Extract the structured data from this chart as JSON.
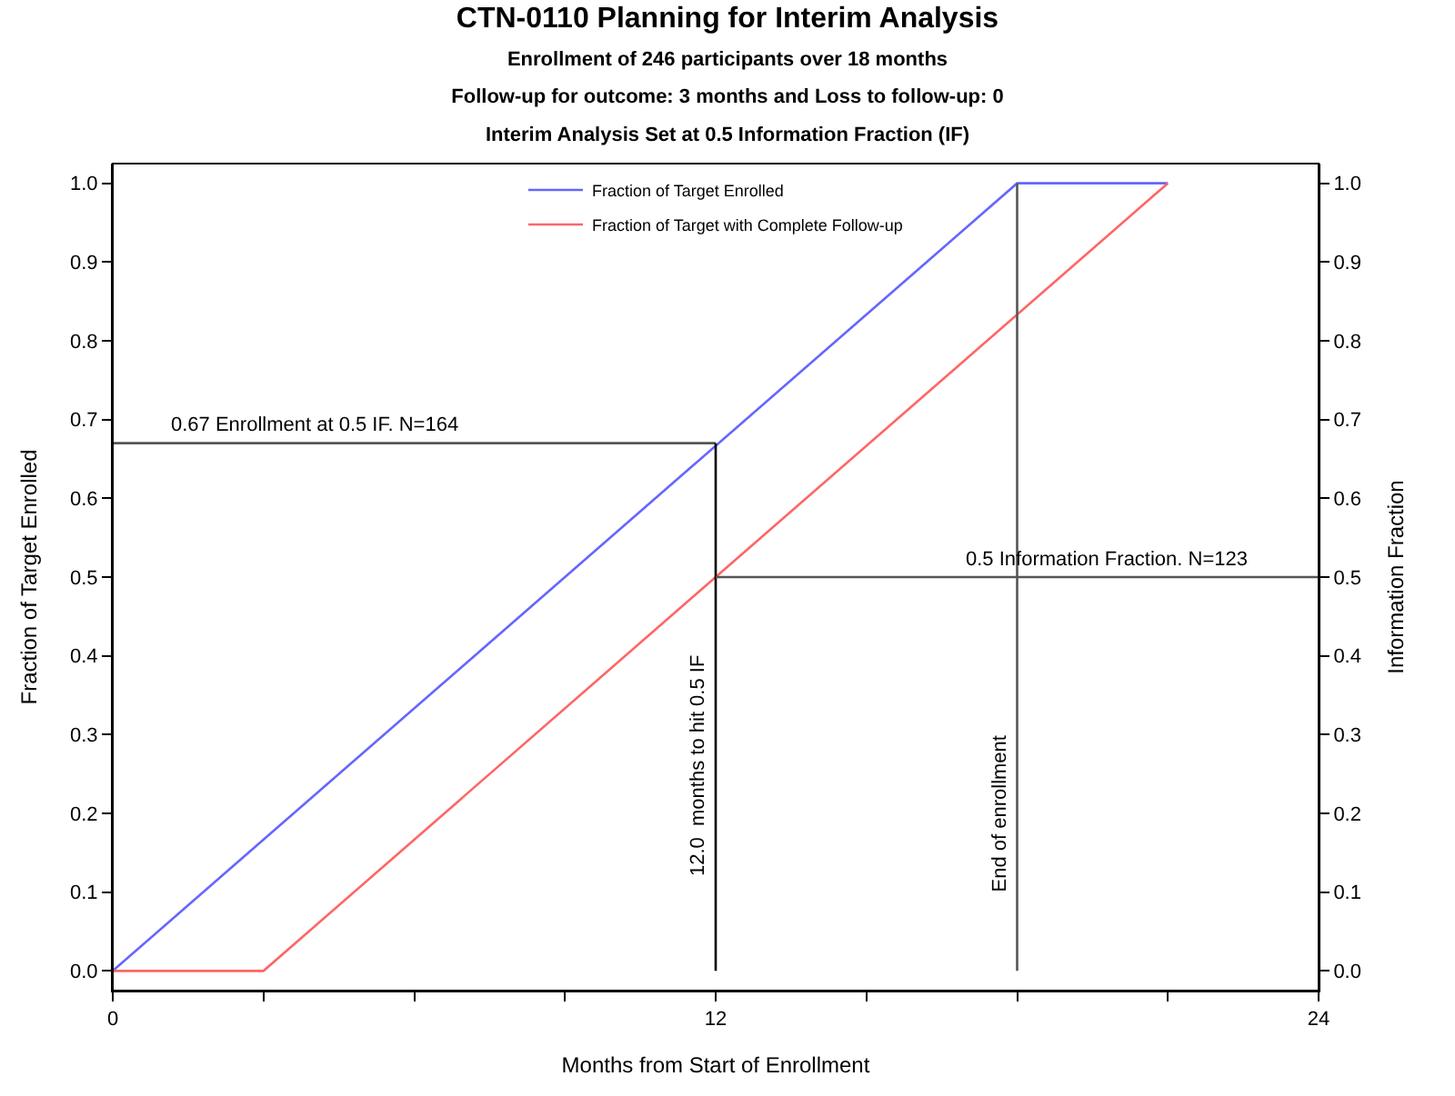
{
  "chart_data": {
    "type": "line",
    "title": "CTN-0110 Planning for Interim Analysis",
    "subtitle": "Enrollment of 246 participants over 18 months\nFollow-up for outcome: 3 months and Loss to follow-up: 0\nInterim Analysis Set at 0.5 Information Fraction (IF)",
    "xlabel": "Months from Start of Enrollment",
    "ylabel": "Fraction of Target Enrolled",
    "y2label": "Information Fraction",
    "series": [
      {
        "name": "Fraction of Target Enrolled",
        "color": "#6666ff",
        "x": [
          0,
          18,
          21
        ],
        "values": [
          0,
          1,
          1
        ]
      },
      {
        "name": "Fraction of Target with Complete Follow-up",
        "color": "#ff6666",
        "x": [
          0,
          3,
          21
        ],
        "values": [
          0,
          0,
          1
        ]
      },
      {
        "color": "#555555",
        "x": [
          0,
          12
        ],
        "values": [
          0.67,
          0.67
        ]
      },
      {
        "color": "#000000",
        "x": [
          12,
          12
        ],
        "values": [
          0,
          0.67
        ]
      },
      {
        "color": "#555555",
        "x": [
          12,
          24
        ],
        "values": [
          0.5,
          0.5
        ]
      },
      {
        "color": "#555555",
        "x": [
          18,
          18
        ],
        "values": [
          0,
          1
        ]
      }
    ],
    "annotations": [
      {
        "text": "0.67 Enrollment at 0.5 IF. N=164",
        "x": 4,
        "y": 0.67
      },
      {
        "text": "0.5 Information Fraction. N=123",
        "x": 19.8,
        "y": 0.5
      },
      {
        "text": "12.0  months to hit 0.5 IF",
        "x": 12,
        "y": 0.26
      },
      {
        "text": "End of enrollment",
        "x": 18,
        "y": 0.2
      }
    ],
    "xlim": [
      0,
      24
    ],
    "xticks": [
      0,
      {
        "value": 3,
        "label": null
      },
      {
        "value": 6,
        "label": null
      },
      {
        "value": 9,
        "label": null
      },
      12,
      {
        "value": 15,
        "label": null
      },
      {
        "value": 18,
        "label": null
      },
      {
        "value": 21,
        "label": null
      },
      24
    ],
    "ylim": [
      -0.025,
      1.025
    ],
    "yticks": [
      {
        "value": 0,
        "label": "0.0"
      },
      0.1,
      0.2,
      0.3,
      0.4,
      0.5,
      0.6,
      0.7,
      0.8,
      0.9,
      {
        "value": 1,
        "label": "1.0"
      }
    ],
    "y2lim": [
      -0.025,
      1.025
    ],
    "y2ticks": [
      {
        "value": 0,
        "label": "0.0"
      },
      0.1,
      0.2,
      0.3,
      0.4,
      0.5,
      0.6,
      0.7,
      0.8,
      0.9,
      {
        "value": 1,
        "label": "1.0"
      }
    ],
    "legend": "top",
    "marker": "none",
    "line_style": "solid"
  }
}
